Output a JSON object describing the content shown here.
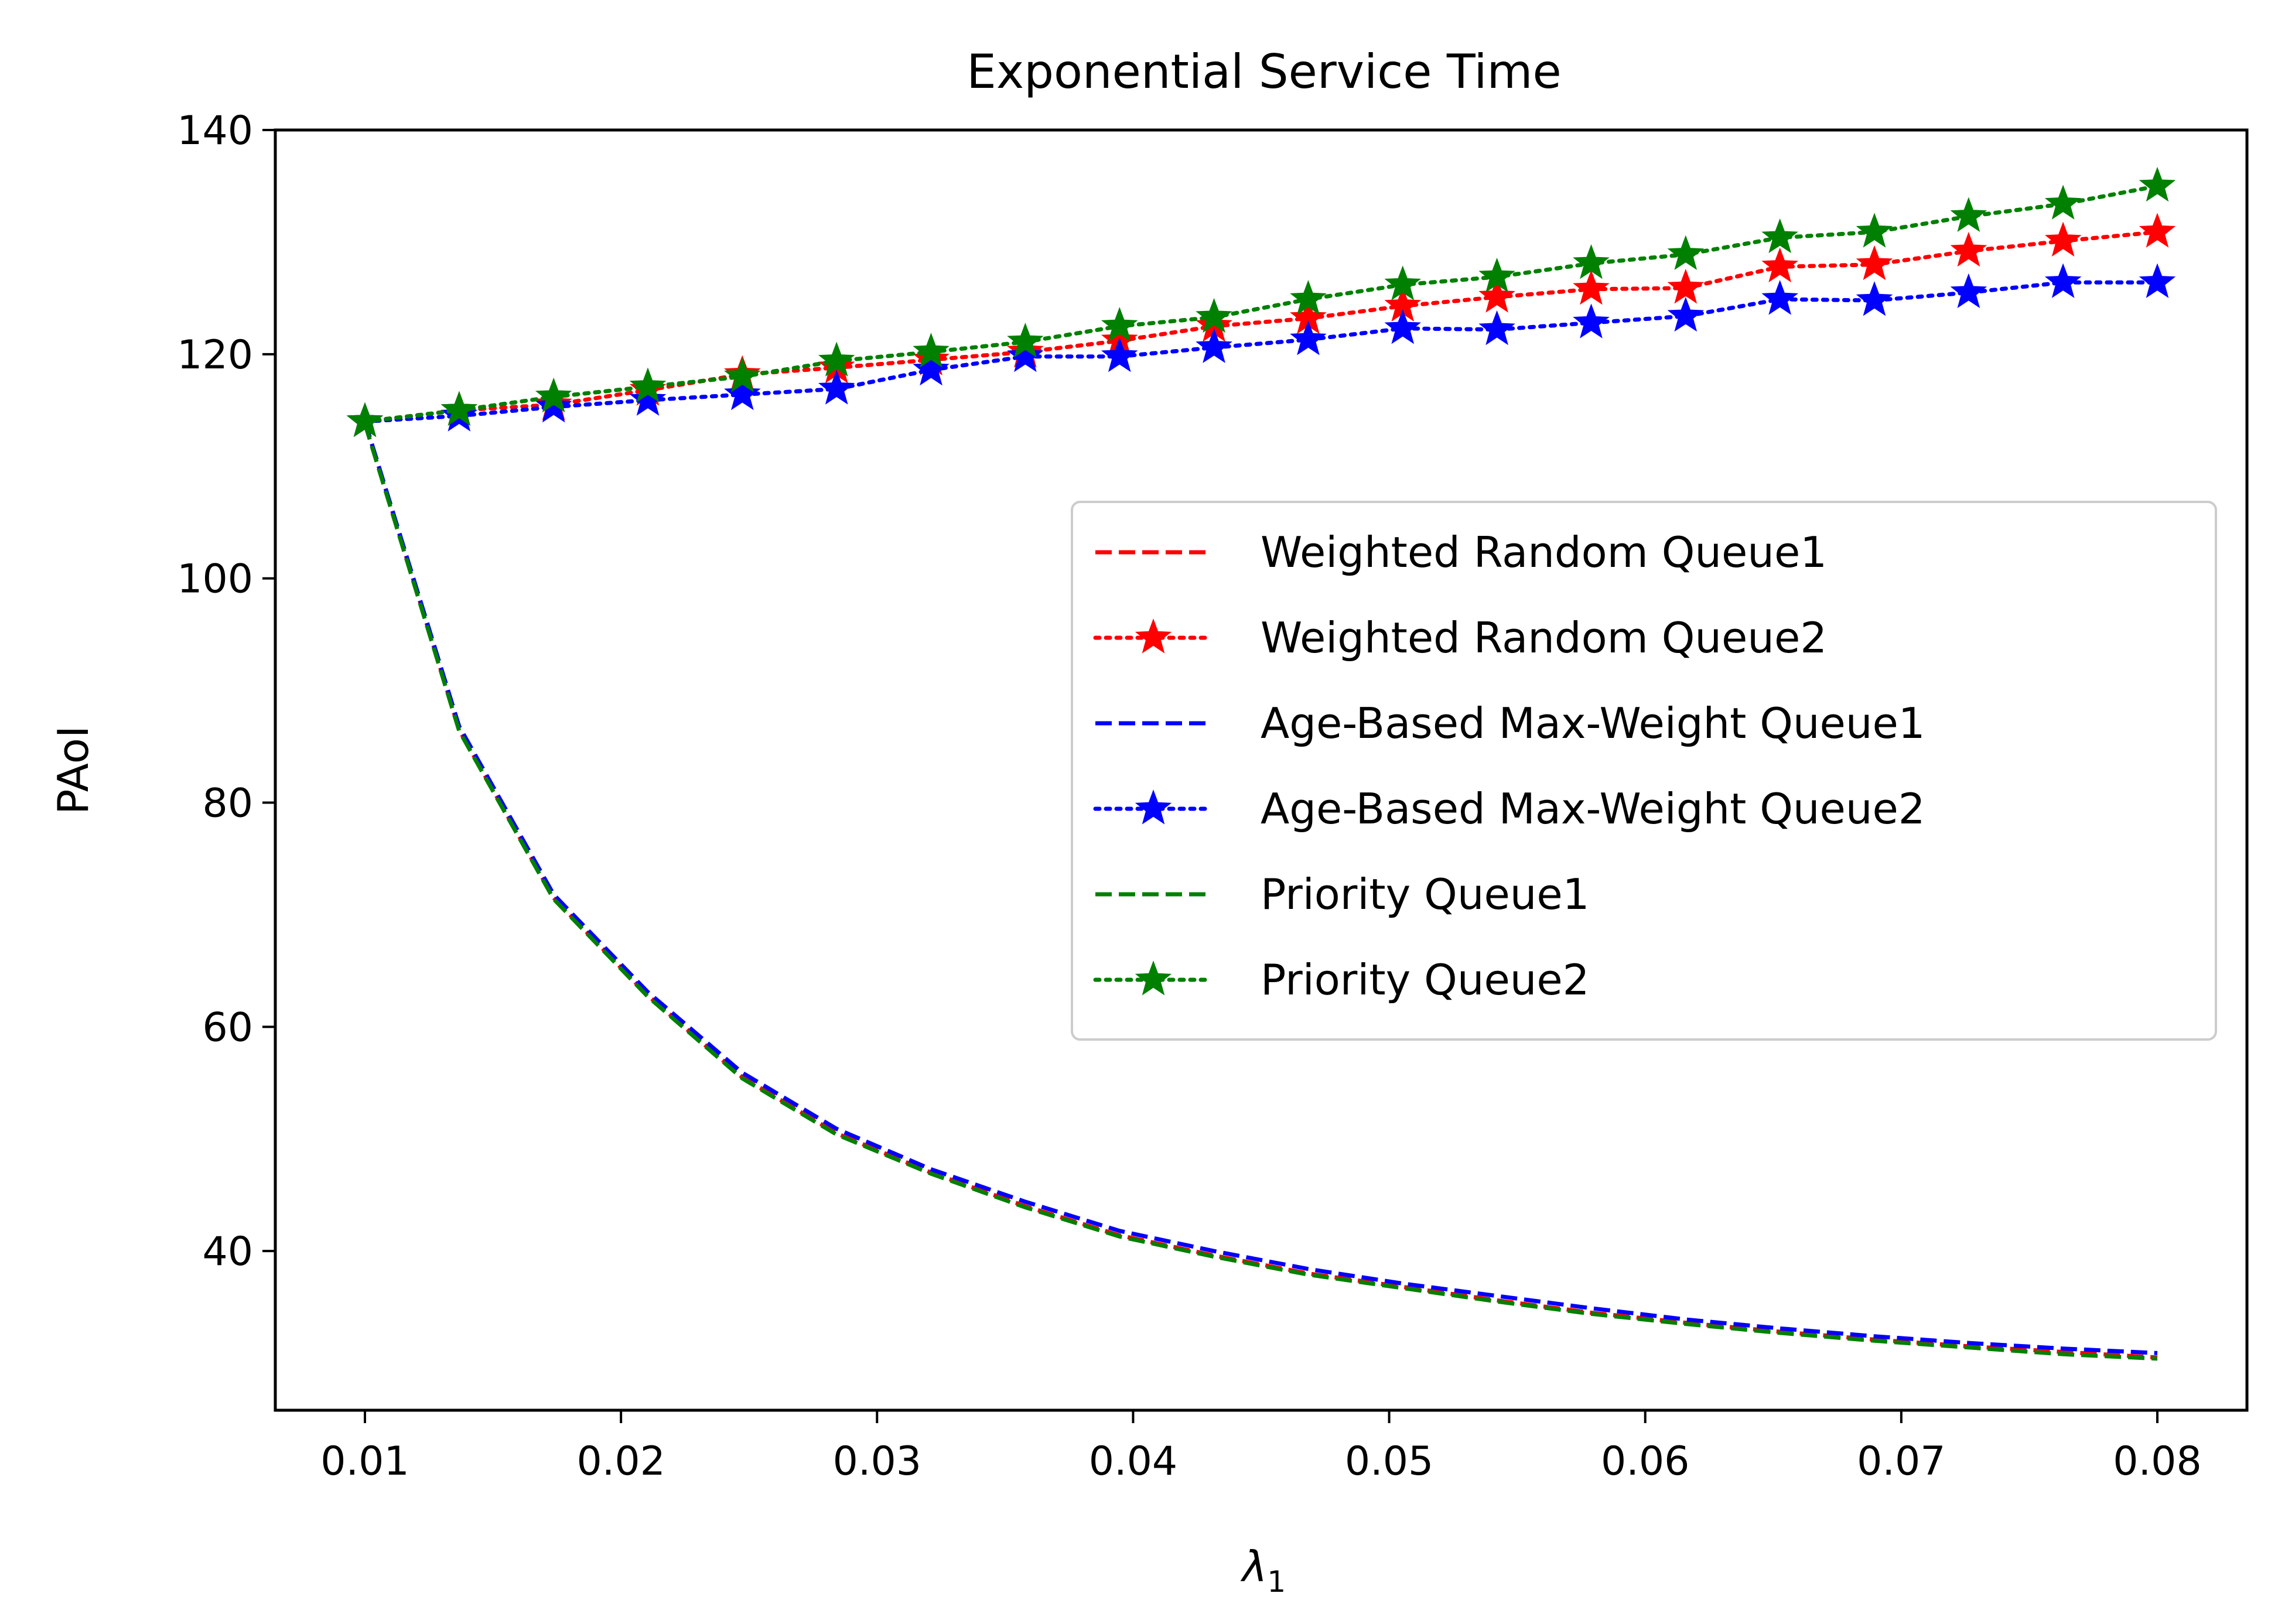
{
  "chart_data": {
    "type": "line",
    "title": "Exponential Service Time",
    "xlabel": "λ1",
    "xlabel_main": "λ",
    "xlabel_sub": "1",
    "ylabel": "PAoI",
    "xlim": [
      0.0065,
      0.0835
    ],
    "ylim": [
      25.8,
      140
    ],
    "xticks": [
      0.01,
      0.02,
      0.03,
      0.04,
      0.05,
      0.06,
      0.07,
      0.08
    ],
    "xtick_labels": [
      "0.01",
      "0.02",
      "0.03",
      "0.04",
      "0.05",
      "0.06",
      "0.07",
      "0.08"
    ],
    "yticks": [
      40,
      60,
      80,
      100,
      120,
      140
    ],
    "ytick_labels": [
      "40",
      "60",
      "80",
      "100",
      "120",
      "140"
    ],
    "grid": false,
    "legend_position": "center-right",
    "x": [
      0.01,
      0.01368,
      0.01737,
      0.02105,
      0.02474,
      0.02842,
      0.03211,
      0.03579,
      0.03947,
      0.04316,
      0.04684,
      0.05053,
      0.05421,
      0.05789,
      0.06158,
      0.06526,
      0.06895,
      0.07263,
      0.07632,
      0.08
    ],
    "series": [
      {
        "name": "Weighted Random Queue1",
        "color": "#ff0000",
        "linestyle": "dashed",
        "marker": "none",
        "values": [
          114.0,
          86.5,
          71.5,
          62.8,
          55.5,
          50.5,
          47.0,
          44.0,
          41.4,
          39.6,
          38.0,
          36.8,
          35.6,
          34.5,
          33.6,
          32.8,
          32.1,
          31.5,
          31.0,
          30.5
        ]
      },
      {
        "name": "Weighted Random Queue2",
        "color": "#ff0000",
        "linestyle": "dotted",
        "marker": "star",
        "values": [
          114.0,
          115.0,
          115.5,
          116.8,
          118.2,
          118.8,
          119.5,
          120.2,
          121.2,
          122.5,
          123.2,
          124.3,
          125.1,
          125.8,
          125.9,
          127.8,
          128.0,
          129.2,
          130.1,
          130.9
        ]
      },
      {
        "name": "Age-Based Max-Weight Queue1",
        "color": "#0000ff",
        "linestyle": "dashed",
        "marker": "none",
        "values": [
          114.0,
          86.8,
          71.8,
          63.1,
          55.9,
          50.9,
          47.3,
          44.4,
          41.8,
          40.0,
          38.4,
          37.1,
          36.0,
          34.9,
          33.9,
          33.1,
          32.4,
          31.8,
          31.3,
          30.9
        ]
      },
      {
        "name": "Age-Based Max-Weight Queue2",
        "color": "#0000ff",
        "linestyle": "dotted",
        "marker": "star",
        "values": [
          114.0,
          114.5,
          115.3,
          115.9,
          116.4,
          116.9,
          118.6,
          119.8,
          119.8,
          120.6,
          121.3,
          122.3,
          122.2,
          122.8,
          123.4,
          124.9,
          124.8,
          125.5,
          126.4,
          126.4
        ]
      },
      {
        "name": "Priority Queue1",
        "color": "#008000",
        "linestyle": "dashed",
        "marker": "none",
        "values": [
          113.8,
          86.4,
          71.4,
          62.7,
          55.4,
          50.4,
          46.9,
          43.9,
          41.3,
          39.5,
          37.9,
          36.7,
          35.5,
          34.4,
          33.5,
          32.7,
          32.0,
          31.4,
          30.8,
          30.4
        ]
      },
      {
        "name": "Priority Queue2",
        "color": "#008000",
        "linestyle": "dotted",
        "marker": "star",
        "values": [
          114.0,
          115.0,
          116.2,
          117.1,
          118.0,
          119.4,
          120.2,
          121.1,
          122.5,
          123.3,
          124.9,
          126.2,
          126.9,
          128.1,
          128.9,
          130.4,
          130.9,
          132.3,
          133.4,
          135.0
        ]
      }
    ]
  }
}
